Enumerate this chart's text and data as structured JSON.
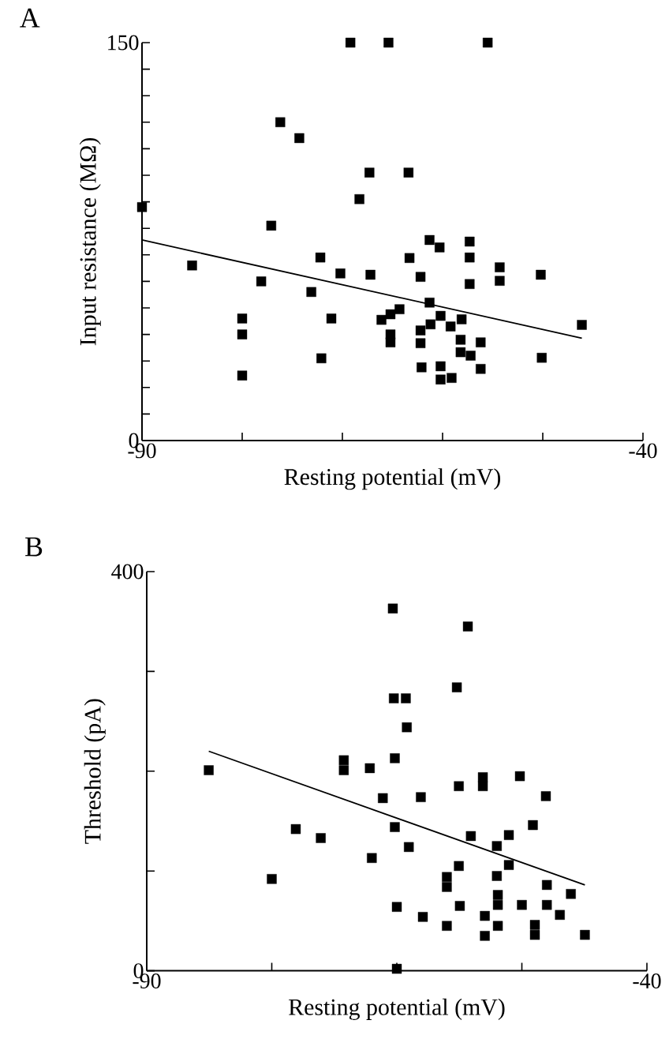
{
  "chart_data": [
    {
      "type": "scatter",
      "title": "A",
      "xlabel": "Resting potential (mV)",
      "ylabel": "Input resistance (MΩ)",
      "xlim": [
        -90,
        -40
      ],
      "ylim": [
        0,
        150
      ],
      "xticks": [
        -90,
        {
          "value": -80,
          "label": null
        },
        {
          "value": -70,
          "label": null
        },
        {
          "value": -60,
          "label": null
        },
        {
          "value": -50,
          "label": null
        },
        -40
      ],
      "yticks": [
        0,
        {
          "value": 10,
          "label": null
        },
        {
          "value": 20,
          "label": null
        },
        {
          "value": 30,
          "label": null
        },
        {
          "value": 40,
          "label": null
        },
        {
          "value": 50,
          "label": null
        },
        {
          "value": 60,
          "label": null
        },
        {
          "value": 70,
          "label": null
        },
        {
          "value": 80,
          "label": null
        },
        {
          "value": 90,
          "label": null
        },
        {
          "value": 100,
          "label": null
        },
        {
          "value": 110,
          "label": null
        },
        {
          "value": 120,
          "label": null
        },
        {
          "value": 130,
          "label": null
        },
        {
          "value": 140,
          "label": null
        },
        150
      ],
      "series": [
        {
          "marker": "square",
          "color": "#000000",
          "x": [
            -90,
            -69.2,
            -65.4,
            -55.5,
            -76.2,
            -74.3,
            -67.3,
            -63.4,
            -68.3,
            -77.1,
            -85,
            -72.2,
            -78.1,
            -70.2,
            -67.2,
            -73.1,
            -80,
            -80,
            -80,
            -72.1,
            -71.1,
            -66.1,
            -65.2,
            -64.3,
            -65.2,
            -65.2,
            -61.3,
            -60.3,
            -63.3,
            -62.2,
            -57.3,
            -57.3,
            -57.3,
            -54.3,
            -54.3,
            -50.2,
            -46.1,
            -50.1,
            -61.3,
            -62.2,
            -61.2,
            -60.2,
            -59.2,
            -58.1,
            -62.2,
            -58.2,
            -58.2,
            -57.2,
            -56.2,
            -62.1,
            -60.2,
            -60.2,
            -59.1,
            -56.2
          ],
          "values": [
            88,
            150,
            150,
            150,
            120,
            114,
            101,
            101,
            91,
            81,
            66,
            69,
            60,
            63,
            62.5,
            56,
            46,
            40,
            24.5,
            31,
            46,
            45.5,
            47.6,
            49.5,
            40,
            37,
            75.6,
            72.8,
            68.8,
            61.7,
            75,
            69,
            59,
            65.3,
            60.2,
            62.5,
            43.6,
            31.2,
            52,
            41.5,
            43.8,
            47,
            43,
            45.7,
            36.7,
            38,
            33.3,
            32,
            37,
            27.6,
            28,
            23,
            23.6,
            27
          ]
        },
        {
          "type": "line",
          "marker": "none",
          "color": "#000000",
          "x": [
            -90,
            -46.1
          ],
          "values": [
            75.6,
            38.6
          ]
        }
      ]
    },
    {
      "type": "scatter",
      "title": "B",
      "xlabel": "Resting potential (mV)",
      "ylabel": "Threshold (pA)",
      "xlim": [
        -90,
        -40
      ],
      "ylim": [
        0,
        400
      ],
      "xticks": [
        -90,
        {
          "value": -77.5,
          "label": null
        },
        {
          "value": -65,
          "label": null
        },
        {
          "value": -52.5,
          "label": null
        },
        -40
      ],
      "yticks": [
        0,
        {
          "value": 100,
          "label": null
        },
        {
          "value": 200,
          "label": null
        },
        {
          "value": 300,
          "label": null
        },
        400
      ],
      "series": [
        {
          "marker": "square",
          "color": "#000000",
          "x": [
            -83.8,
            -75.1,
            -72.6,
            -77.5,
            -70.3,
            -70.3,
            -67.7,
            -66.4,
            -67.5,
            -65.4,
            -65.3,
            -65.2,
            -65.2,
            -65,
            -65,
            -57.9,
            -59,
            -64.1,
            -64,
            -62.6,
            -58.8,
            -56.4,
            -56.4,
            -52.7,
            -50.1,
            -51.4,
            -63.8,
            -57.6,
            -53.8,
            -55,
            -53.8,
            -58.8,
            -60,
            -60,
            -55,
            -50,
            -47.6,
            -62.4,
            -58.7,
            -60,
            -56.2,
            -56.2,
            -54.9,
            -54.9,
            -54.9,
            -52.5,
            -50,
            -48.7,
            -51.2,
            -51.2,
            -46.2
          ],
          "values": [
            201,
            142,
            133,
            92,
            211,
            201,
            203,
            173,
            113,
            363,
            273,
            213,
            144,
            64,
            2,
            345,
            284,
            273,
            244,
            174,
            185,
            194,
            185,
            195,
            175,
            146,
            124,
            135,
            136,
            125,
            106,
            105,
            94,
            84,
            95,
            86,
            77,
            54,
            65,
            45,
            55,
            35,
            76,
            66,
            45,
            66,
            66,
            56,
            46,
            36,
            36
          ]
        },
        {
          "type": "line",
          "marker": "none",
          "color": "#000000",
          "x": [
            -83.8,
            -46.2
          ],
          "values": [
            220,
            86
          ]
        }
      ]
    }
  ]
}
